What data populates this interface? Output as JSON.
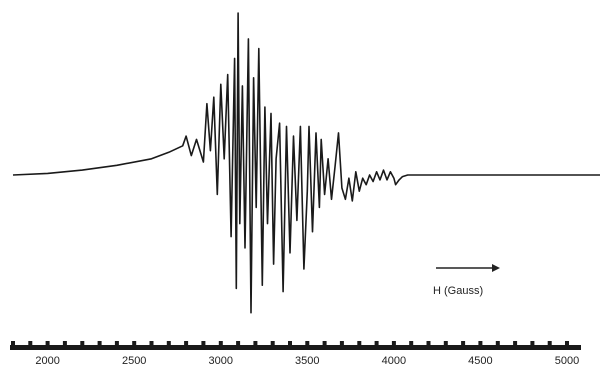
{
  "chart_data": {
    "type": "line",
    "field_label": "H (Gauss)",
    "xlim": [
      1800,
      5000
    ],
    "ylim": [
      -1,
      1
    ],
    "ticks": [
      "2000",
      "2500",
      "3000",
      "3500",
      "4000",
      "4500",
      "5000"
    ],
    "grid": false,
    "series": [
      {
        "x": [
          1800,
          2000,
          2200,
          2400,
          2600,
          2700,
          2780,
          2800,
          2830,
          2860,
          2900,
          2920,
          2940,
          2960,
          2980,
          3000,
          3020,
          3040,
          3060,
          3080,
          3090,
          3100,
          3110,
          3125,
          3140,
          3160,
          3175,
          3190,
          3205,
          3220,
          3240,
          3255,
          3270,
          3290,
          3305,
          3320,
          3340,
          3360,
          3380,
          3400,
          3420,
          3440,
          3460,
          3480,
          3500,
          3510,
          3530,
          3550,
          3570,
          3580,
          3600,
          3620,
          3640,
          3660,
          3680,
          3700,
          3720,
          3740,
          3760,
          3780,
          3800,
          3820,
          3840,
          3860,
          3880,
          3900,
          3920,
          3940,
          3960,
          3980,
          4000,
          4010,
          4030,
          4050,
          4080,
          4150,
          4300,
          4500,
          4700,
          4900,
          5000
        ],
        "y": [
          0.0,
          0.01,
          0.03,
          0.06,
          0.1,
          0.14,
          0.18,
          0.24,
          0.12,
          0.22,
          0.08,
          0.44,
          0.15,
          0.48,
          -0.12,
          0.56,
          0.1,
          0.62,
          -0.38,
          0.72,
          -0.7,
          1.0,
          -0.3,
          0.55,
          -0.45,
          0.84,
          -0.85,
          0.6,
          -0.2,
          0.78,
          -0.68,
          0.42,
          -0.3,
          0.38,
          -0.55,
          0.1,
          0.32,
          -0.72,
          0.3,
          -0.48,
          0.24,
          -0.28,
          0.3,
          -0.58,
          -0.1,
          0.3,
          -0.35,
          0.26,
          -0.2,
          0.22,
          -0.12,
          0.1,
          -0.15,
          0.05,
          0.26,
          -0.08,
          -0.15,
          -0.02,
          -0.16,
          0.02,
          -0.1,
          -0.02,
          -0.06,
          0.0,
          -0.04,
          0.02,
          -0.03,
          0.03,
          -0.03,
          0.02,
          -0.02,
          -0.06,
          -0.03,
          -0.01,
          0.0,
          0.0,
          0.0,
          0.0,
          0.0,
          0.0,
          0.0
        ]
      }
    ]
  }
}
